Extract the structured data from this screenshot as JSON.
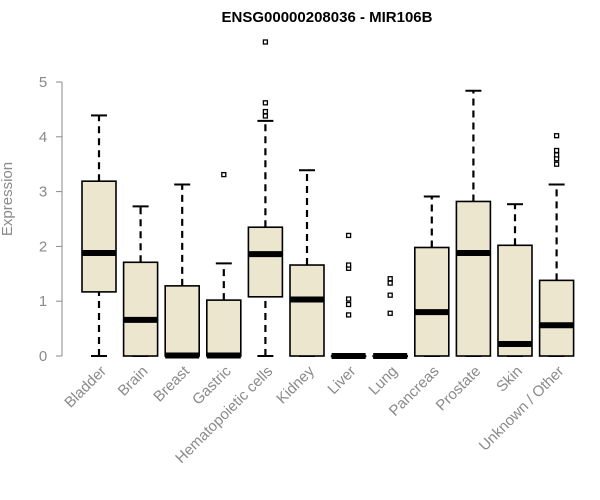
{
  "chart_data": {
    "type": "box",
    "title": "ENSG00000208036 - MIR106B",
    "ylabel": "Expression",
    "xlabel": "",
    "ylim": [
      0,
      5.75
    ],
    "yticks": [
      "0",
      "1",
      "2",
      "3",
      "4",
      "5"
    ],
    "box_fill": "#ede6cf",
    "categories": [
      "Bladder",
      "Brain",
      "Breast",
      "Gastric",
      "Hematopoietic cells",
      "Kidney",
      "Liver",
      "Lung",
      "Pancreas",
      "Prostate",
      "Skin",
      "Unknown / Other"
    ],
    "boxes": [
      {
        "min": 0,
        "q1": 1.17,
        "median": 1.88,
        "q3": 3.19,
        "max": 4.39,
        "outliers": []
      },
      {
        "min": 0,
        "q1": 0,
        "median": 0.66,
        "q3": 1.71,
        "max": 2.73,
        "outliers": []
      },
      {
        "min": 0,
        "q1": 0,
        "median": 0.01,
        "q3": 1.28,
        "max": 3.13,
        "outliers": []
      },
      {
        "min": 0,
        "q1": 0,
        "median": 0.01,
        "q3": 1.02,
        "max": 1.69,
        "outliers": [
          3.31
        ]
      },
      {
        "min": 0,
        "q1": 1.08,
        "median": 1.86,
        "q3": 2.35,
        "max": 4.29,
        "outliers": [
          4.38,
          4.46,
          4.62,
          5.73
        ]
      },
      {
        "min": 0,
        "q1": 0,
        "median": 1.03,
        "q3": 1.66,
        "max": 3.39,
        "outliers": []
      },
      {
        "min": 0,
        "q1": 0,
        "median": 0,
        "q3": 0,
        "max": 0,
        "outliers": [
          0.75,
          0.94,
          1.04,
          1.6,
          1.66,
          2.2
        ]
      },
      {
        "min": 0,
        "q1": 0,
        "median": 0,
        "q3": 0,
        "max": 0,
        "outliers": [
          0.78,
          1.11,
          1.33,
          1.41
        ]
      },
      {
        "min": 0,
        "q1": 0,
        "median": 0.8,
        "q3": 1.98,
        "max": 2.91,
        "outliers": []
      },
      {
        "min": 0,
        "q1": 0,
        "median": 1.88,
        "q3": 2.82,
        "max": 4.84,
        "outliers": []
      },
      {
        "min": 0,
        "q1": 0,
        "median": 0.22,
        "q3": 2.02,
        "max": 2.77,
        "outliers": []
      },
      {
        "min": 0,
        "q1": 0,
        "median": 0.56,
        "q3": 1.38,
        "max": 3.13,
        "outliers": [
          3.5,
          3.6,
          3.67,
          3.75,
          4.02
        ]
      }
    ]
  }
}
